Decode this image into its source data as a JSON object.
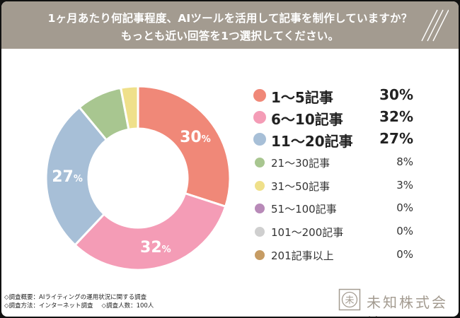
{
  "header": {
    "title_line1": "1ヶ月あたり何記事程度、AIツールを活用して記事を制作していますか？",
    "title_line2": "もっとも近い回答を1つ選択してください。"
  },
  "chart_data": {
    "type": "pie",
    "variant": "donut",
    "title": "1ヶ月あたり何記事程度、AIツールを活用して記事を制作していますか？ もっとも近い回答を1つ選択してください。",
    "unit": "%",
    "slices": [
      {
        "label": "1〜5記事",
        "value": 30,
        "color": "#f08878",
        "emphasis": true
      },
      {
        "label": "6〜10記事",
        "value": 32,
        "color": "#f49cb6",
        "emphasis": true
      },
      {
        "label": "11〜20記事",
        "value": 27,
        "color": "#a7bfd7",
        "emphasis": true
      },
      {
        "label": "21〜30記事",
        "value": 8,
        "color": "#a8c690",
        "emphasis": false
      },
      {
        "label": "31〜50記事",
        "value": 3,
        "color": "#efe08a",
        "emphasis": false
      },
      {
        "label": "51〜100記事",
        "value": 0,
        "color": "#b88ab8",
        "emphasis": false
      },
      {
        "label": "101〜200記事",
        "value": 0,
        "color": "#cfcfcf",
        "emphasis": false
      },
      {
        "label": "201記事以上",
        "value": 0,
        "color": "#c69c64",
        "emphasis": false
      }
    ],
    "data_labels": [
      {
        "label": "1〜5記事",
        "text": "30",
        "suffix": "%"
      },
      {
        "label": "6〜10記事",
        "text": "32",
        "suffix": "%"
      },
      {
        "label": "11〜20記事",
        "text": "27",
        "suffix": "%"
      }
    ],
    "legend_position": "right"
  },
  "footer": {
    "survey_overview": "◇調査概要：AIライティングの運用状況に関する調査",
    "survey_method": "◇調査方法：インターネット調査",
    "respondents": "◇調査人数：100人"
  },
  "brand": {
    "name": "未知株式会社",
    "logo_glyph": "未"
  }
}
